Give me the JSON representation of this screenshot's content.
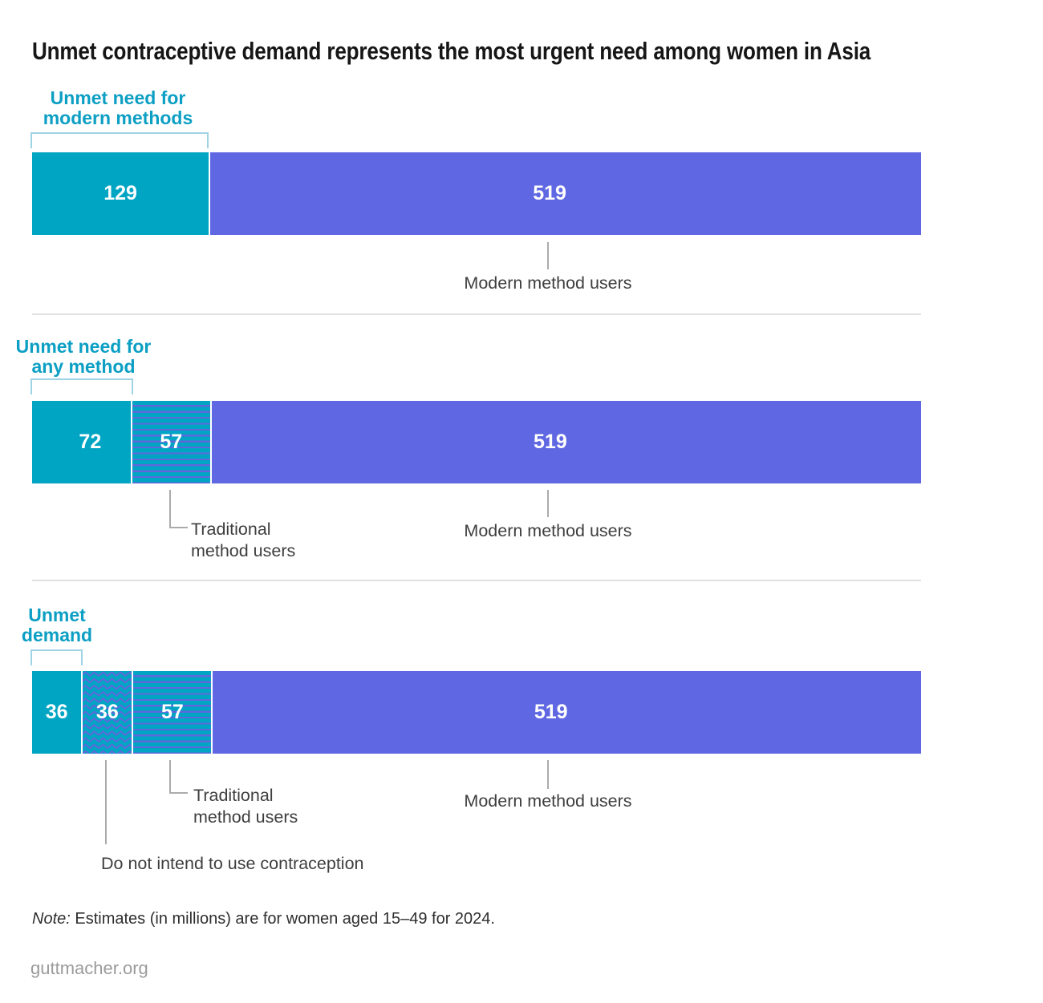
{
  "title": "Unmet contraceptive demand represents the most urgent need among women in Asia",
  "chart_data": {
    "type": "bar",
    "subtype": "stacked-horizontal",
    "unit": "millions of women",
    "population": "women aged 15-49, 2024, Asia",
    "total_per_row": 648,
    "rows": [
      {
        "bracket_label": [
          "Unmet need for",
          "modern methods"
        ],
        "bracket_covers_value": 129,
        "segments": [
          {
            "label": "Unmet need for modern methods",
            "value": 129,
            "fill": "teal-solid"
          },
          {
            "label": "Modern method users",
            "value": 519,
            "fill": "purple-solid"
          }
        ]
      },
      {
        "bracket_label": [
          "Unmet need for",
          "any method"
        ],
        "bracket_covers_value": 72,
        "segments": [
          {
            "label": "Unmet need for any method",
            "value": 72,
            "fill": "teal-solid"
          },
          {
            "label": "Traditional method users",
            "value": 57,
            "fill": "teal-striped"
          },
          {
            "label": "Modern method users",
            "value": 519,
            "fill": "purple-solid"
          }
        ]
      },
      {
        "bracket_label": [
          "Unmet",
          "demand"
        ],
        "bracket_covers_value": 36,
        "segments": [
          {
            "label": "Unmet demand",
            "value": 36,
            "fill": "teal-solid"
          },
          {
            "label": "Do not intend to use contraception",
            "value": 36,
            "fill": "teal-zigzag"
          },
          {
            "label": "Traditional method users",
            "value": 57,
            "fill": "teal-striped"
          },
          {
            "label": "Modern method users",
            "value": 519,
            "fill": "purple-solid"
          }
        ]
      }
    ]
  },
  "labels": {
    "modern": "Modern method users",
    "traditional": [
      "Traditional",
      "method users"
    ],
    "do_not_intend": "Do not intend to use contraception"
  },
  "note": {
    "prefix": "Note:",
    "text": " Estimates (in millions) are for women aged 15–49 for 2024."
  },
  "footer": "guttmacher.org",
  "colors": {
    "teal": "#00A5C4",
    "purple": "#5F68E2",
    "pattern_stripe": "#5F68DA",
    "label_teal": "#0C9FC4",
    "bracket": "#9FD4E4",
    "callout_line": "#ABABAB",
    "divider": "#E0E0E0",
    "title_text": "#161616",
    "callout_text": "#3E3E3E"
  }
}
